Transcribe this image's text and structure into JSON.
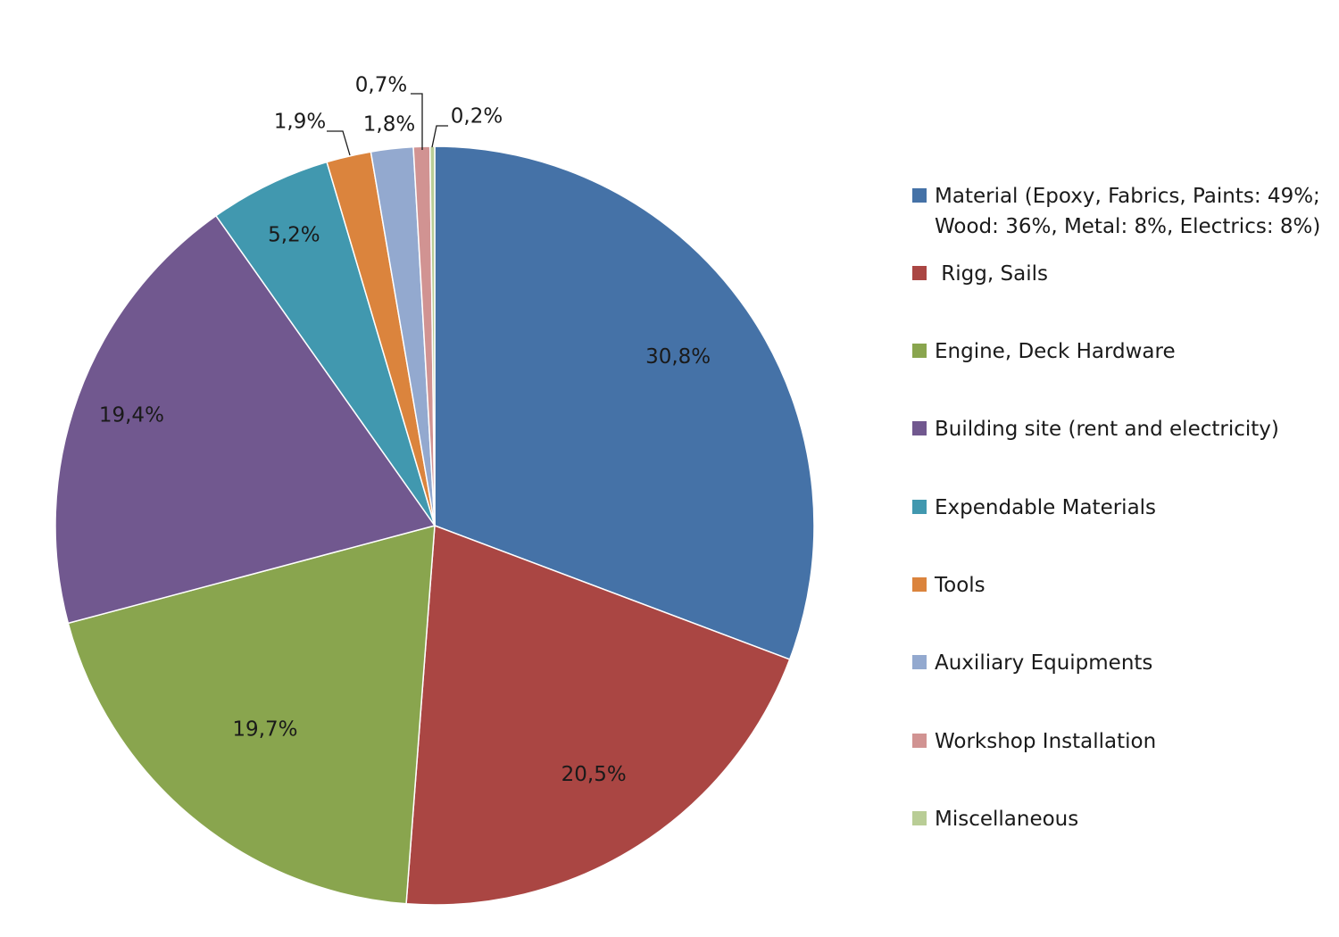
{
  "chart_data": {
    "type": "pie",
    "title": "",
    "series": [
      {
        "name": "Material (Epoxy, Fabrics, Paints: 49%;\nWood: 36%, Metal: 8%, Electrics: 8%)",
        "value": 30.8,
        "label": "30,8%",
        "color": "#4572A7"
      },
      {
        "name": " Rigg, Sails",
        "value": 20.5,
        "label": "20,5%",
        "color": "#AA4643"
      },
      {
        "name": "Engine, Deck Hardware",
        "value": 19.7,
        "label": "19,7%",
        "color": "#89A54E"
      },
      {
        "name": "Building site (rent and electricity)",
        "value": 19.4,
        "label": "19,4%",
        "color": "#71588F"
      },
      {
        "name": "Expendable Materials",
        "value": 5.2,
        "label": "5,2%",
        "color": "#4198AF"
      },
      {
        "name": "Tools",
        "value": 1.9,
        "label": "1,9%",
        "color": "#DB843D"
      },
      {
        "name": "Auxiliary Equipments",
        "value": 1.8,
        "label": "1,8%",
        "color": "#93A9CF"
      },
      {
        "name": "Workshop Installation",
        "value": 0.7,
        "label": "0,7%",
        "color": "#D19392"
      },
      {
        "name": "Miscellaneous",
        "value": 0.2,
        "label": "0,2%",
        "color": "#B9CD96"
      }
    ],
    "legend_position": "right",
    "start_angle": "12 o'clock, clockwise"
  }
}
